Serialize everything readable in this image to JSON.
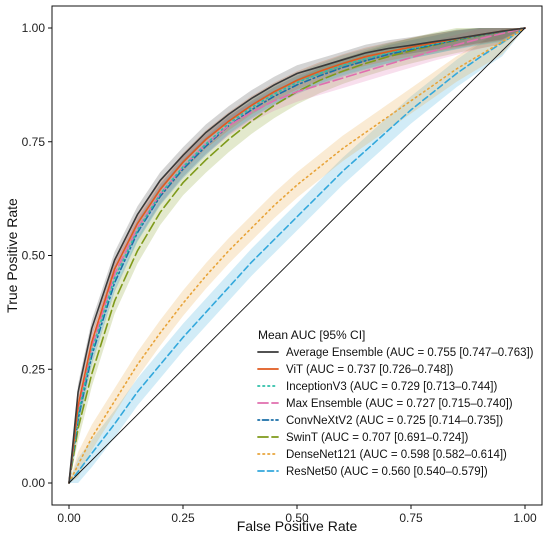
{
  "chart_data": {
    "type": "line",
    "title": "",
    "xlabel": "False Positive Rate",
    "ylabel": "True Positive Rate",
    "xlim": [
      0,
      1
    ],
    "ylim": [
      0,
      1
    ],
    "x_ticks": [
      "0.00",
      "0.25",
      "0.50",
      "0.75",
      "1.00"
    ],
    "y_ticks": [
      "0.00",
      "0.25",
      "0.50",
      "0.75",
      "1.00"
    ],
    "grid": false,
    "diagonal_reference": true,
    "legend": {
      "title": "Mean AUC [95% CI]",
      "placement": "bottom-right"
    },
    "series": [
      {
        "name": "Average Ensemble (AUC = 0.755 [0.747–0.763])",
        "color": "#3a3a3a",
        "dash": "solid",
        "x": [
          0,
          0.02,
          0.05,
          0.1,
          0.15,
          0.2,
          0.25,
          0.3,
          0.35,
          0.4,
          0.45,
          0.5,
          0.55,
          0.6,
          0.65,
          0.7,
          0.75,
          0.8,
          0.85,
          0.9,
          0.95,
          1
        ],
        "y": [
          0,
          0.2,
          0.34,
          0.49,
          0.59,
          0.665,
          0.72,
          0.77,
          0.81,
          0.845,
          0.875,
          0.9,
          0.915,
          0.93,
          0.945,
          0.955,
          0.962,
          0.97,
          0.977,
          0.985,
          0.993,
          1
        ],
        "ci": 0.018
      },
      {
        "name": "ViT (AUC = 0.737 [0.726–0.748])",
        "color": "#e05a1f",
        "dash": "solid",
        "x": [
          0,
          0.02,
          0.05,
          0.1,
          0.15,
          0.2,
          0.25,
          0.3,
          0.35,
          0.4,
          0.45,
          0.5,
          0.55,
          0.6,
          0.65,
          0.7,
          0.75,
          0.8,
          0.85,
          0.9,
          0.95,
          1
        ],
        "y": [
          0,
          0.17,
          0.31,
          0.47,
          0.57,
          0.645,
          0.705,
          0.755,
          0.795,
          0.83,
          0.86,
          0.885,
          0.905,
          0.922,
          0.937,
          0.948,
          0.958,
          0.967,
          0.976,
          0.985,
          0.993,
          1
        ],
        "ci": 0.02
      },
      {
        "name": "InceptionV3 (AUC = 0.729 [0.713–0.744])",
        "color": "#2bbfa8",
        "dash": "dotted",
        "x": [
          0,
          0.02,
          0.05,
          0.1,
          0.15,
          0.2,
          0.25,
          0.3,
          0.35,
          0.4,
          0.45,
          0.5,
          0.55,
          0.6,
          0.65,
          0.7,
          0.75,
          0.8,
          0.85,
          0.9,
          0.95,
          1
        ],
        "y": [
          0,
          0.15,
          0.29,
          0.45,
          0.555,
          0.635,
          0.695,
          0.745,
          0.79,
          0.825,
          0.855,
          0.88,
          0.9,
          0.918,
          0.932,
          0.945,
          0.955,
          0.965,
          0.975,
          0.984,
          0.992,
          1
        ],
        "ci": 0.022
      },
      {
        "name": "Max Ensemble (AUC = 0.727 [0.715–0.740])",
        "color": "#e06fae",
        "dash": "longdash",
        "x": [
          0,
          0.02,
          0.05,
          0.1,
          0.15,
          0.2,
          0.25,
          0.3,
          0.35,
          0.4,
          0.45,
          0.5,
          0.55,
          0.6,
          0.65,
          0.7,
          0.75,
          0.8,
          0.85,
          0.9,
          0.95,
          1
        ],
        "y": [
          0,
          0.16,
          0.3,
          0.46,
          0.56,
          0.635,
          0.695,
          0.745,
          0.785,
          0.815,
          0.84,
          0.86,
          0.875,
          0.89,
          0.905,
          0.92,
          0.935,
          0.95,
          0.963,
          0.976,
          0.988,
          1
        ],
        "ci": 0.022
      },
      {
        "name": "ConvNeXtV2 (AUC = 0.725 [0.714–0.735])",
        "color": "#1a6fa8",
        "dash": "dotdash",
        "x": [
          0,
          0.02,
          0.05,
          0.1,
          0.15,
          0.2,
          0.25,
          0.3,
          0.35,
          0.4,
          0.45,
          0.5,
          0.55,
          0.6,
          0.65,
          0.7,
          0.75,
          0.8,
          0.85,
          0.9,
          0.95,
          1
        ],
        "y": [
          0,
          0.14,
          0.28,
          0.44,
          0.55,
          0.63,
          0.69,
          0.74,
          0.785,
          0.82,
          0.85,
          0.875,
          0.895,
          0.913,
          0.928,
          0.942,
          0.953,
          0.963,
          0.974,
          0.984,
          0.992,
          1
        ],
        "ci": 0.02
      },
      {
        "name": "SwinT (AUC = 0.707 [0.691–0.724])",
        "color": "#7f9a1a",
        "dash": "longdash",
        "x": [
          0,
          0.02,
          0.05,
          0.1,
          0.15,
          0.2,
          0.25,
          0.3,
          0.35,
          0.4,
          0.45,
          0.5,
          0.55,
          0.6,
          0.65,
          0.7,
          0.75,
          0.8,
          0.85,
          0.9,
          0.95,
          1
        ],
        "y": [
          0,
          0.12,
          0.24,
          0.4,
          0.51,
          0.595,
          0.66,
          0.71,
          0.755,
          0.795,
          0.83,
          0.86,
          0.885,
          0.905,
          0.922,
          0.937,
          0.95,
          0.962,
          0.973,
          0.983,
          0.992,
          1
        ],
        "ci": 0.028
      },
      {
        "name": "DenseNet121 (AUC = 0.598 [0.582–0.614])",
        "color": "#e8a43a",
        "dash": "dotted",
        "x": [
          0,
          0.02,
          0.05,
          0.1,
          0.15,
          0.2,
          0.25,
          0.3,
          0.35,
          0.4,
          0.45,
          0.5,
          0.55,
          0.6,
          0.65,
          0.7,
          0.75,
          0.8,
          0.85,
          0.9,
          0.95,
          1
        ],
        "y": [
          0,
          0.04,
          0.1,
          0.18,
          0.26,
          0.33,
          0.395,
          0.455,
          0.51,
          0.56,
          0.61,
          0.655,
          0.695,
          0.735,
          0.77,
          0.805,
          0.84,
          0.875,
          0.91,
          0.94,
          0.97,
          1
        ],
        "ci": 0.028
      },
      {
        "name": "ResNet50 (AUC = 0.560 [0.540–0.579])",
        "color": "#33a8dc",
        "dash": "dashed",
        "x": [
          0,
          0.02,
          0.05,
          0.1,
          0.15,
          0.2,
          0.25,
          0.3,
          0.35,
          0.4,
          0.45,
          0.5,
          0.55,
          0.6,
          0.65,
          0.7,
          0.75,
          0.8,
          0.85,
          0.9,
          0.95,
          1
        ],
        "y": [
          0,
          0.025,
          0.065,
          0.13,
          0.2,
          0.26,
          0.32,
          0.375,
          0.43,
          0.485,
          0.535,
          0.585,
          0.635,
          0.685,
          0.73,
          0.775,
          0.82,
          0.86,
          0.9,
          0.935,
          0.968,
          1
        ],
        "ci": 0.03
      }
    ]
  }
}
